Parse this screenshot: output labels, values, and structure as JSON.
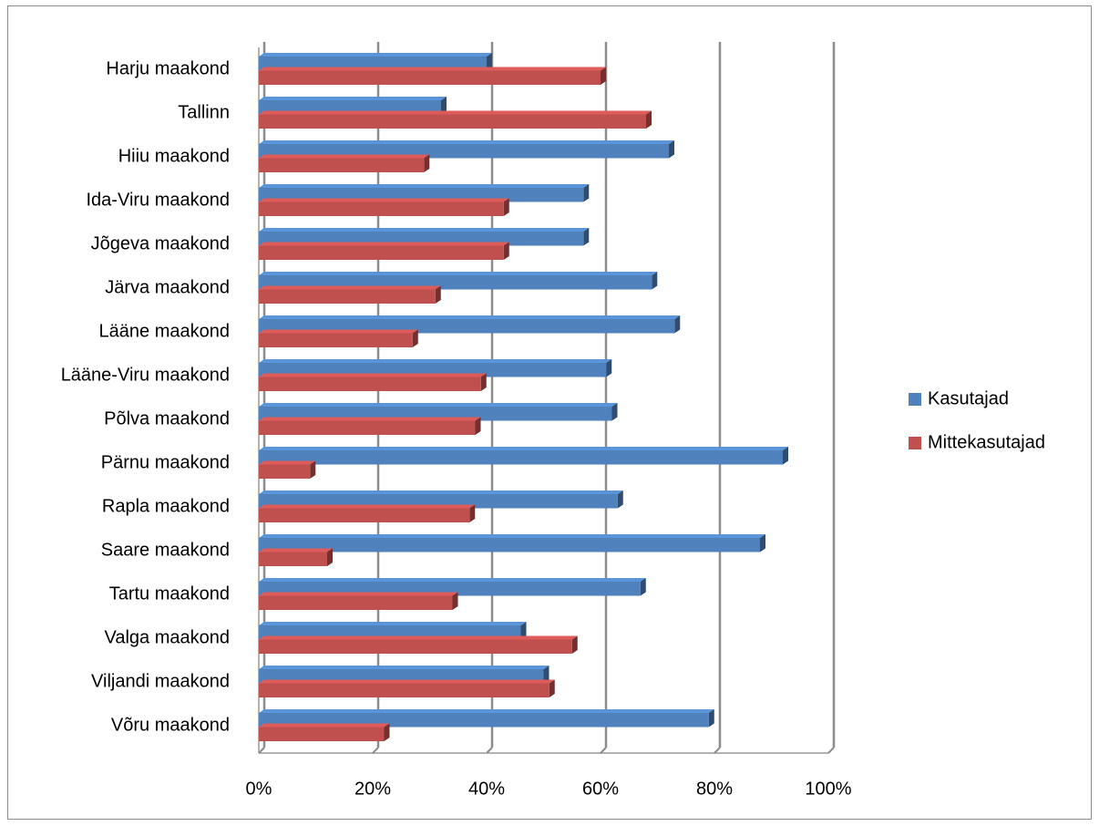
{
  "chart_data": {
    "type": "bar",
    "orientation": "horizontal",
    "title": "",
    "xlabel": "",
    "ylabel": "",
    "categories": [
      "Harju maakond",
      "Tallinn",
      "Hiiu maakond",
      "Ida-Viru maakond",
      "Jõgeva maakond",
      "Järva maakond",
      "Lääne maakond",
      "Lääne-Viru maakond",
      "Põlva maakond",
      "Pärnu maakond",
      "Rapla maakond",
      "Saare maakond",
      "Tartu maakond",
      "Valga maakond",
      "Viljandi maakond",
      "Võru maakond"
    ],
    "series": [
      {
        "name": "Kasutajad",
        "color": "#4F81BD",
        "values": [
          40,
          32,
          72,
          57,
          57,
          69,
          73,
          61,
          62,
          92,
          63,
          88,
          67,
          46,
          50,
          79
        ]
      },
      {
        "name": "Mittekasutajad",
        "color": "#C0504D",
        "values": [
          60,
          68,
          29,
          43,
          43,
          31,
          27,
          39,
          38,
          9,
          37,
          12,
          34,
          55,
          51,
          22
        ]
      }
    ],
    "xlim": [
      0,
      100
    ],
    "x_ticks": [
      "0%",
      "20%",
      "40%",
      "60%",
      "80%",
      "100%"
    ],
    "grid": true,
    "legend_position": "right"
  }
}
